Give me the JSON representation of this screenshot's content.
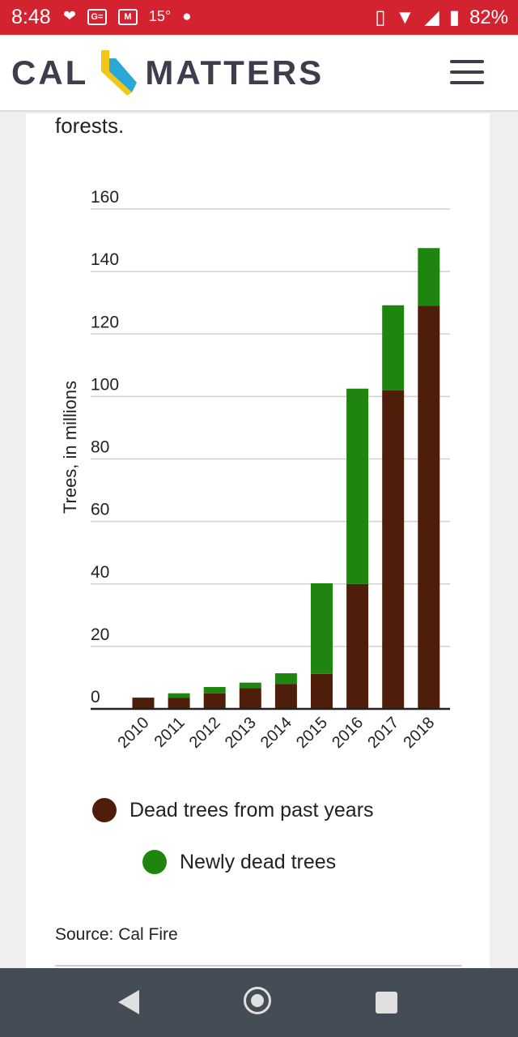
{
  "status_bar": {
    "time": "8:48",
    "temperature": "15°",
    "battery": "82%",
    "icons": [
      "iheartradio-icon",
      "ge-icon",
      "gmail-icon",
      "dot-icon",
      "vibrate-icon",
      "wifi-icon",
      "signal-icon",
      "battery-icon"
    ]
  },
  "header": {
    "logo_left": "CAL",
    "logo_right": "MATTERS",
    "menu_icon": "hamburger-menu-icon"
  },
  "article": {
    "intro_text": "forests."
  },
  "chart_data": {
    "type": "bar",
    "stacked": true,
    "categories": [
      "2010",
      "2011",
      "2012",
      "2013",
      "2014",
      "2015",
      "2016",
      "2017",
      "2018"
    ],
    "series": [
      {
        "name": "Dead trees from past years",
        "color": "#4e1e0a",
        "values": [
          3.6,
          3.6,
          5,
          6.6,
          8,
          11.2,
          40,
          102,
          129
        ]
      },
      {
        "name": "Newly dead trees",
        "color": "#1e850f",
        "values": [
          0,
          1.4,
          2,
          1.8,
          3.4,
          29,
          62.5,
          27.2,
          18.5
        ]
      }
    ],
    "ylabel": "Trees, in millions",
    "ylim": [
      0,
      160
    ],
    "yticks": [
      "160",
      "140",
      "120",
      "100",
      "80",
      "60",
      "40",
      "20",
      "0"
    ],
    "grid": true,
    "legend_position": "bottom"
  },
  "source": "Source: Cal Fire",
  "nav": {
    "back": "back-icon",
    "home": "home-icon",
    "recents": "recents-icon"
  }
}
